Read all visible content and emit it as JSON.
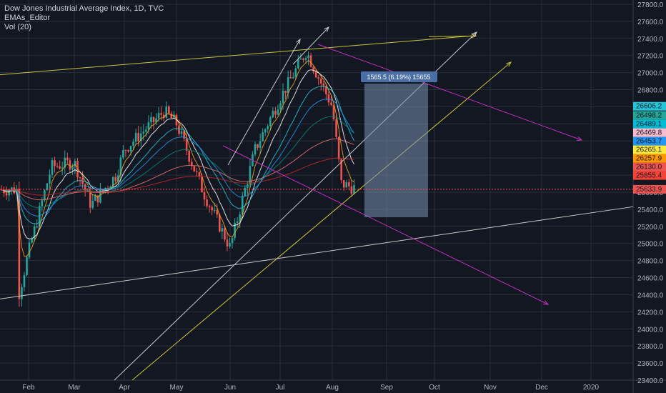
{
  "legend": {
    "title": "Dow Jones Industrial Average Index, 1D, TVC",
    "indicator": "EMAs_Editor",
    "volume": "Vol (20)"
  },
  "colors": {
    "background": "#131722",
    "grid": "#2a2e39",
    "axis_text": "#b2b5be",
    "candle_up": "#26a69a",
    "candle_down": "#ef5350",
    "trendline_yellow": "#c9c23a",
    "trendline_magenta": "#c02fc0",
    "trendline_white": "#c8c8c8",
    "measure_box": "rgba(120,144,176,0.55)",
    "measure_label_bg": "#4a6fa5"
  },
  "measure_label": "1565.5 (6.19%) 15655",
  "chart_data": {
    "type": "candlestick",
    "title": "Dow Jones Industrial Average Index, 1D, TVC",
    "x_ticks": [
      "Feb",
      "Mar",
      "Apr",
      "May",
      "Jun",
      "Jul",
      "Aug",
      "Sep",
      "Oct",
      "Nov",
      "Dec",
      "2020"
    ],
    "y_ticks": [
      23400,
      23600,
      23800,
      24000,
      24200,
      24400,
      24600,
      24800,
      25000,
      25200,
      25400,
      25600,
      25800,
      26000,
      26200,
      26400,
      26600,
      26800,
      27000,
      27200,
      27400,
      27600,
      27800
    ],
    "ylim": [
      23400,
      27850
    ],
    "grid": true,
    "legend_position": "top-left",
    "monthly_path": [
      [
        "Jan 23",
        24400
      ],
      [
        "Feb",
        24900
      ],
      [
        "Feb 15",
        25900
      ],
      [
        "Mar",
        25950
      ],
      [
        "Mar 10",
        25450
      ],
      [
        "Mar 25",
        25800
      ],
      [
        "Apr",
        26100
      ],
      [
        "Apr 23",
        26550
      ],
      [
        "May",
        26400
      ],
      [
        "May 15",
        25600
      ],
      [
        "Jun",
        24950
      ],
      [
        "Jun 15",
        26100
      ],
      [
        "Jul",
        26700
      ],
      [
        "Jul 15",
        27250
      ],
      [
        "Aug",
        26600
      ],
      [
        "Aug 5",
        25700
      ],
      [
        "Aug 15",
        25630
      ]
    ],
    "price_labels": [
      {
        "value": "26606.2",
        "color": "#26c6da",
        "level": 26606.2
      },
      {
        "value": "26498.2",
        "color": "#26a69a",
        "level": 26498.2
      },
      {
        "value": "26489.1",
        "color": "#00bcd4",
        "level": 26489.1
      },
      {
        "value": "26469.8",
        "color": "#f8bbd0",
        "level": 26469.8
      },
      {
        "value": "26453.7",
        "color": "#2196f3",
        "level": 26453.7
      },
      {
        "value": "26265.1",
        "color": "#ffeb3b",
        "level": 26265.1
      },
      {
        "value": "26257.9",
        "color": "#ff9800",
        "level": 26257.9
      },
      {
        "value": "26130.0",
        "color": "#ef5350",
        "level": 26130.0
      },
      {
        "value": "25855.4",
        "color": "#f44336",
        "level": 25855.4
      },
      {
        "value": "25633.9",
        "color": "#ef5350",
        "level": 25633.9
      }
    ]
  }
}
